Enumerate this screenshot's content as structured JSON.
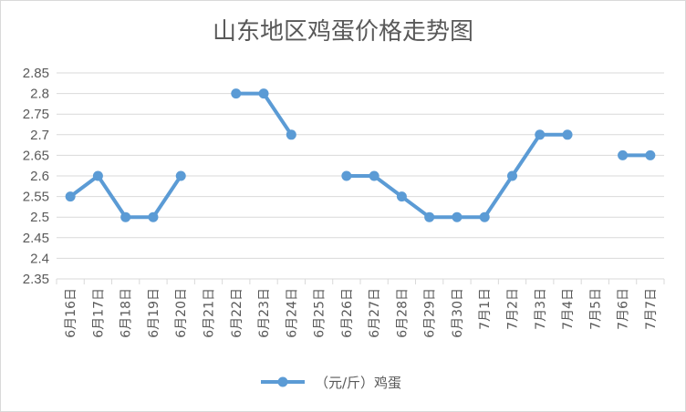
{
  "chart_data": {
    "type": "line",
    "title": "山东地区鸡蛋价格走势图",
    "categories": [
      "6月16日",
      "6月17日",
      "6月18日",
      "6月19日",
      "6月20日",
      "6月21日",
      "6月22日",
      "6月23日",
      "6月24日",
      "6月25日",
      "6月26日",
      "6月27日",
      "6月28日",
      "6月29日",
      "6月30日",
      "7月1日",
      "7月2日",
      "7月3日",
      "7月4日",
      "7月5日",
      "7月6日",
      "7月7日"
    ],
    "series": [
      {
        "name": "（元/斤）鸡蛋",
        "values": [
          2.55,
          2.6,
          2.5,
          2.5,
          2.6,
          null,
          2.8,
          2.8,
          2.7,
          null,
          2.6,
          2.6,
          2.55,
          2.5,
          2.5,
          2.5,
          2.6,
          2.7,
          2.7,
          null,
          2.65,
          2.65
        ],
        "color": "#5B9BD5"
      }
    ],
    "yticks": [
      "2.35",
      "2.4",
      "2.45",
      "2.5",
      "2.55",
      "2.6",
      "2.65",
      "2.7",
      "2.75",
      "2.8",
      "2.85"
    ],
    "ylim": [
      2.35,
      2.85
    ],
    "grid": true,
    "legend": "bottom",
    "xlabel": "",
    "ylabel": ""
  }
}
